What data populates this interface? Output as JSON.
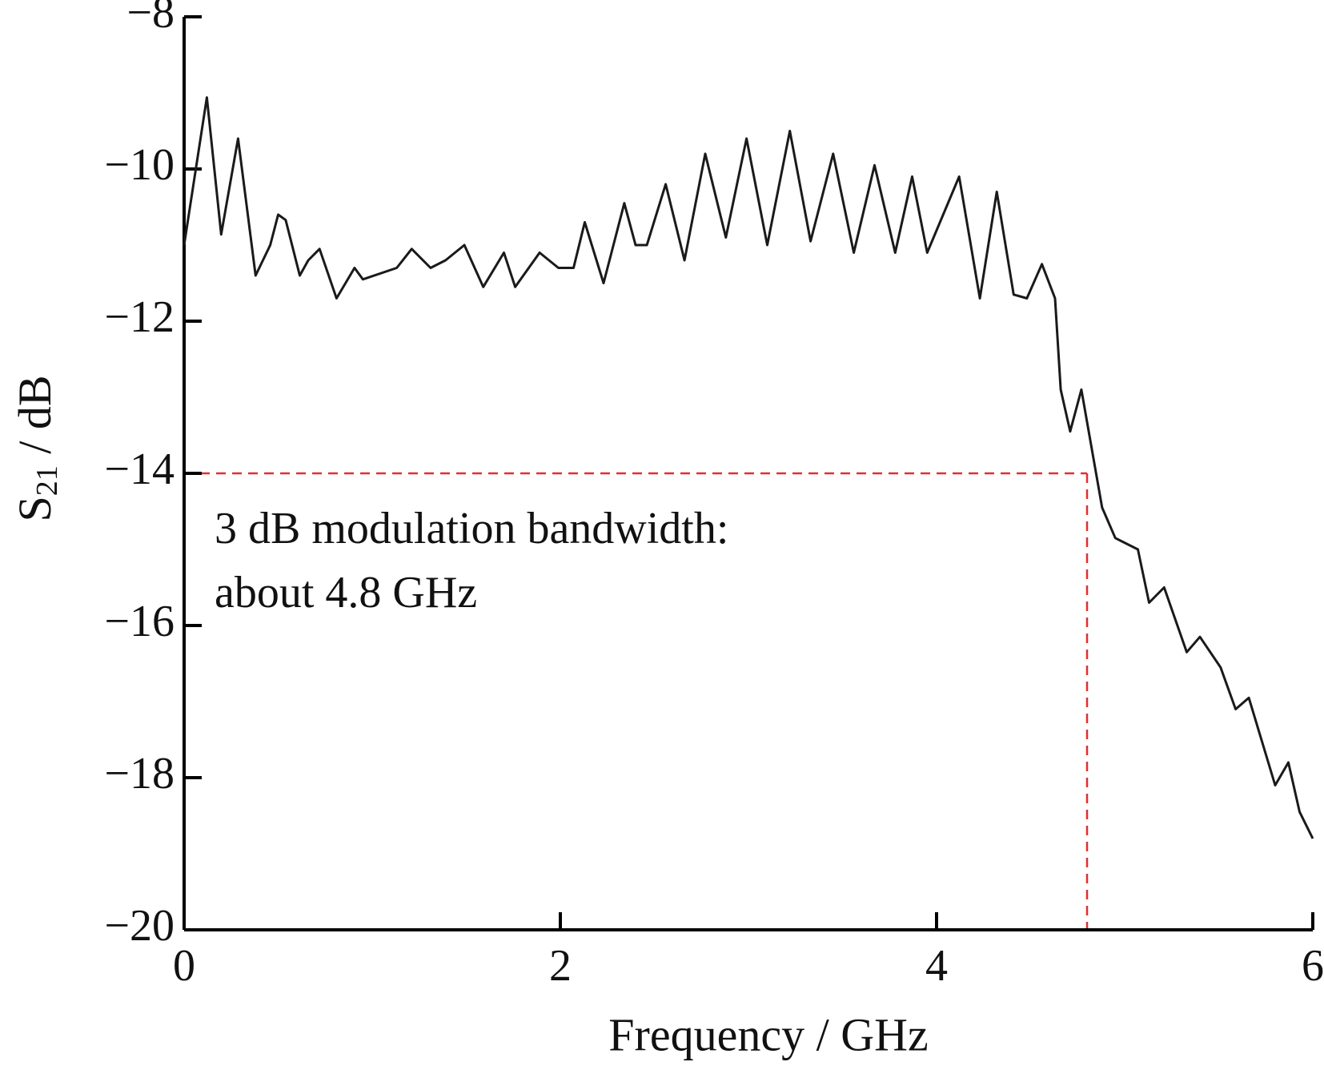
{
  "chart_data": {
    "type": "line",
    "xlabel": "Frequency / GHz",
    "ylabel": [
      "S",
      "21",
      " / dB"
    ],
    "annotation": [
      "3 dB modulation bandwidth:",
      "about 4.8 GHz"
    ],
    "xlim": [
      0,
      6
    ],
    "xticks": [
      0,
      2,
      4,
      6
    ],
    "ylim": [
      -20,
      -8
    ],
    "yticks": [
      {
        "value": -20,
        "label": "−20"
      },
      {
        "value": -18,
        "label": "−18"
      },
      {
        "value": -16,
        "label": "−16"
      },
      {
        "value": -14,
        "label": "−14"
      },
      {
        "value": -12,
        "label": "−12"
      },
      {
        "value": -10,
        "label": "−10"
      },
      {
        "value": -8,
        "label": "−8"
      }
    ],
    "grid": false,
    "reference_lines": {
      "x": 4.8,
      "y": -14,
      "color": "#e03030"
    },
    "x": [
      0,
      0.121,
      0.197,
      0.287,
      0.38,
      0.458,
      0.5,
      0.54,
      0.615,
      0.66,
      0.72,
      0.81,
      0.906,
      0.95,
      1.13,
      1.21,
      1.31,
      1.39,
      1.49,
      1.59,
      1.7,
      1.76,
      1.89,
      1.99,
      2.07,
      2.13,
      2.23,
      2.34,
      2.4,
      2.46,
      2.56,
      2.66,
      2.77,
      2.88,
      2.99,
      3.1,
      3.22,
      3.33,
      3.45,
      3.56,
      3.67,
      3.78,
      3.87,
      3.95,
      4.12,
      4.23,
      4.32,
      4.41,
      4.48,
      4.56,
      4.63,
      4.66,
      4.71,
      4.77,
      4.83,
      4.88,
      4.95,
      5.07,
      5.13,
      5.21,
      5.33,
      5.4,
      5.51,
      5.59,
      5.66,
      5.8,
      5.87,
      5.93,
      6.0
    ],
    "series": [
      {
        "color": "#1a1a1a",
        "values": [
          -11.0,
          -9.06,
          -10.86,
          -9.6,
          -11.4,
          -11.0,
          -10.6,
          -10.67,
          -11.4,
          -11.2,
          -11.05,
          -11.7,
          -11.3,
          -11.45,
          -11.3,
          -11.05,
          -11.3,
          -11.2,
          -11.0,
          -11.55,
          -11.1,
          -11.55,
          -11.1,
          -11.3,
          -11.3,
          -10.7,
          -11.5,
          -10.45,
          -11.0,
          -11.0,
          -10.2,
          -11.2,
          -9.8,
          -10.9,
          -9.6,
          -11.0,
          -9.5,
          -10.95,
          -9.8,
          -11.1,
          -9.95,
          -11.1,
          -10.1,
          -11.1,
          -10.1,
          -11.7,
          -10.3,
          -11.65,
          -11.7,
          -11.25,
          -11.7,
          -12.9,
          -13.45,
          -12.9,
          -13.75,
          -14.45,
          -14.85,
          -15.0,
          -15.7,
          -15.5,
          -16.35,
          -16.15,
          -16.55,
          -17.1,
          -16.95,
          -18.1,
          -17.8,
          -18.45,
          -18.8
        ]
      }
    ]
  }
}
